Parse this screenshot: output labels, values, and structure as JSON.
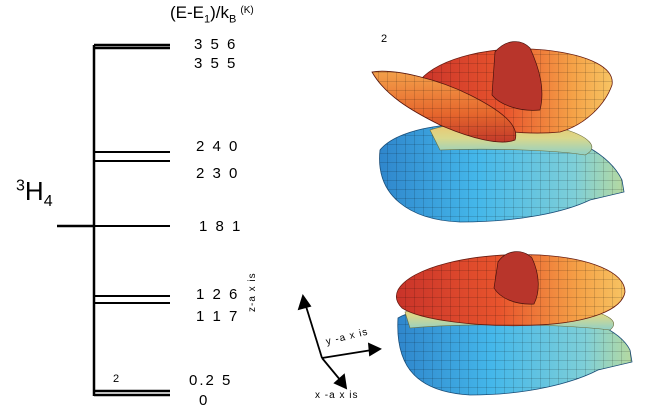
{
  "header": {
    "energy_prefix": "(E-E",
    "energy_sub": "1",
    "energy_mid": ")/k",
    "energy_sub_b": "B",
    "unit": "(K)"
  },
  "term_symbol": {
    "multiplicity": "3",
    "letter": "H",
    "j": "4"
  },
  "levels": [
    {
      "label": "3 5 6"
    },
    {
      "label": "3 5 5"
    },
    {
      "label": "2 4 0"
    },
    {
      "label": "2 3 0"
    },
    {
      "label": "1 8 1"
    },
    {
      "label": "1 2 6"
    },
    {
      "label": "1 1 7"
    },
    {
      "label": "0.2 5"
    },
    {
      "label": "0"
    }
  ],
  "degeneracy_labels": {
    "top_surface": "2",
    "bottom_level": "2"
  },
  "axes": {
    "z": "z-a x is",
    "y": "y -a x is",
    "x": "x -a x is"
  },
  "colors": {
    "warm": "#e8502a",
    "cool": "#3fb6e6",
    "line": "#000000"
  }
}
